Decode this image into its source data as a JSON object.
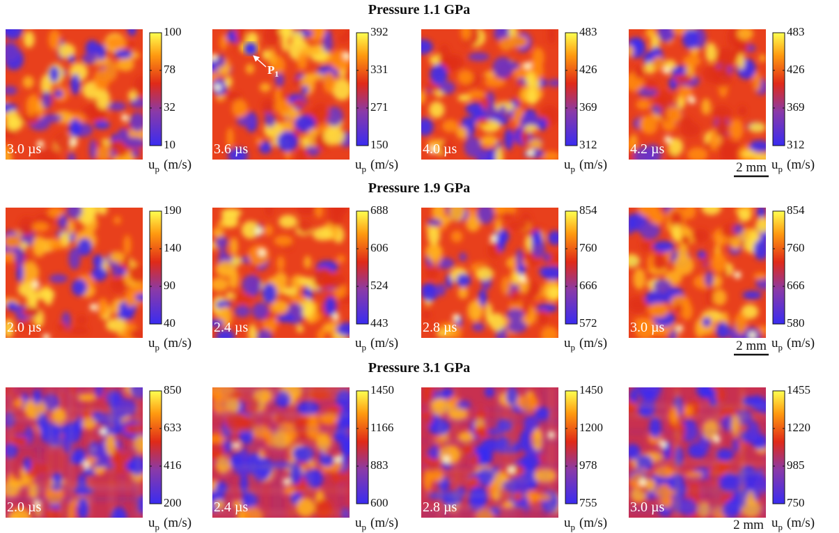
{
  "rows": [
    {
      "title": "Pressure 1.1 GPa",
      "scale_bar": "2 mm",
      "panels": [
        {
          "time": "3.0 µs",
          "ticks": [
            10,
            32,
            78,
            100
          ]
        },
        {
          "time": "3.6 µs",
          "ticks": [
            150,
            271,
            331,
            392
          ]
        },
        {
          "time": "4.0 µs",
          "ticks": [
            312,
            369,
            426,
            483
          ]
        },
        {
          "time": "4.2 µs",
          "ticks": [
            312,
            369,
            426,
            483
          ]
        }
      ]
    },
    {
      "title": "Pressure 1.9 GPa",
      "scale_bar": "2 mm",
      "panels": [
        {
          "time": "2.0 µs",
          "ticks": [
            40,
            90,
            140,
            190
          ]
        },
        {
          "time": "2.4 µs",
          "ticks": [
            443,
            524,
            606,
            688
          ]
        },
        {
          "time": "2.8 µs",
          "ticks": [
            572,
            666,
            760,
            854
          ]
        },
        {
          "time": "3.0 µs",
          "ticks": [
            580,
            666,
            760,
            854
          ]
        }
      ]
    },
    {
      "title": "Pressure 3.1 GPa",
      "scale_bar": "2 mm",
      "panels": [
        {
          "time": "2.0 µs",
          "ticks": [
            200,
            416,
            633,
            850
          ]
        },
        {
          "time": "2.4 µs",
          "ticks": [
            600,
            883,
            1166,
            1450
          ]
        },
        {
          "time": "2.8 µs",
          "ticks": [
            755,
            978,
            1200,
            1450
          ]
        },
        {
          "time": "3.0 µs",
          "ticks": [
            750,
            985,
            1220,
            1455
          ]
        }
      ]
    }
  ],
  "colorbar_label": {
    "symbol": "u",
    "subscript": "p",
    "unit": "(m/s)"
  },
  "annotation": {
    "text": "P",
    "subscript": "1"
  }
}
